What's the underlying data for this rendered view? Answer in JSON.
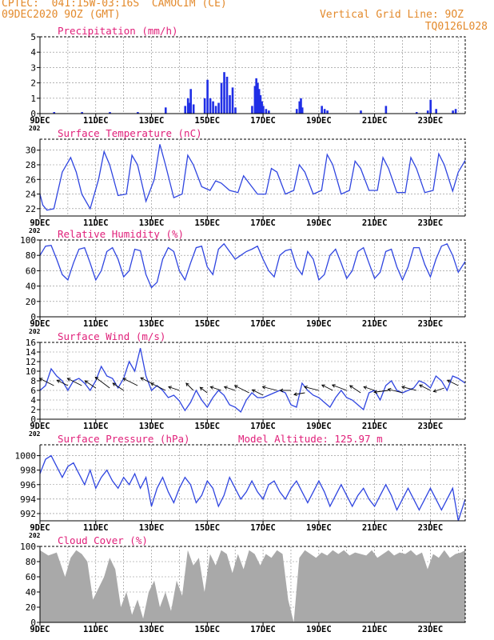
{
  "header": {
    "line1": "CPTEC:  041:15W-03:16S  CAMOCIM (CE)",
    "line2": "09DEC2020 9OZ (GMT)",
    "grid_note": "Vertical Grid Line: 9OZ",
    "code": "TQ0126L028",
    "model_altitude": "Model Altitude: 125.97 m"
  },
  "colors": {
    "header": "#e38a2c",
    "title": "#e0207a",
    "series": "#2f45e0",
    "bars": "#1f2ee6",
    "cloud": "#a9a9a9",
    "frame": "#000000",
    "grid": "#888888"
  },
  "x_axis": {
    "labels": [
      "9DEC",
      "11DEC",
      "13DEC",
      "15DEC",
      "17DEC",
      "19DEC",
      "21DEC",
      "23DEC"
    ],
    "label_days": [
      9,
      11,
      13,
      15,
      17,
      19,
      21,
      23
    ],
    "start_day": 9,
    "end_day": 24.25,
    "year_fragment": "202"
  },
  "chart_data": [
    {
      "id": "precip",
      "type": "bar",
      "title": "Precipitation  (mm/h)",
      "ylim": [
        0,
        5
      ],
      "yticks": [
        0,
        1,
        2,
        3,
        4,
        5
      ],
      "x": [
        9.5,
        10.5,
        11.5,
        12.5,
        13.5,
        14.2,
        14.3,
        14.35,
        14.4,
        14.5,
        14.9,
        15.0,
        15.1,
        15.2,
        15.3,
        15.4,
        15.5,
        15.6,
        15.7,
        15.8,
        15.9,
        16.0,
        16.6,
        16.7,
        16.75,
        16.8,
        16.85,
        16.9,
        16.95,
        17.0,
        17.1,
        17.2,
        18.2,
        18.3,
        18.35,
        18.4,
        19.1,
        19.2,
        19.3,
        20.5,
        21.4,
        22.5,
        22.9,
        23.0,
        23.2,
        23.8,
        23.9
      ],
      "y": [
        0.1,
        0.1,
        0.1,
        0.1,
        0.4,
        0.5,
        1.0,
        0.7,
        1.6,
        0.6,
        1.0,
        2.2,
        1.0,
        0.8,
        0.5,
        0.7,
        2.0,
        2.7,
        2.4,
        1.2,
        1.7,
        0.4,
        0.5,
        1.8,
        2.3,
        2.0,
        1.6,
        1.2,
        0.8,
        0.5,
        0.3,
        0.2,
        0.3,
        0.8,
        1.0,
        0.4,
        0.5,
        0.3,
        0.2,
        0.2,
        0.5,
        0.1,
        0.2,
        0.9,
        0.3,
        0.2,
        0.3
      ]
    },
    {
      "id": "temp",
      "type": "line",
      "title": "Surface Temperature  (nC)",
      "ylim": [
        21,
        31.5
      ],
      "yticks": [
        22,
        24,
        26,
        28,
        30
      ],
      "x": [
        9.0,
        9.1,
        9.25,
        9.5,
        9.8,
        10.1,
        10.3,
        10.5,
        10.8,
        11.1,
        11.3,
        11.5,
        11.8,
        12.1,
        12.3,
        12.5,
        12.8,
        13.1,
        13.3,
        13.5,
        13.8,
        14.1,
        14.3,
        14.5,
        14.8,
        15.1,
        15.3,
        15.5,
        15.8,
        16.1,
        16.3,
        16.5,
        16.8,
        17.1,
        17.3,
        17.5,
        17.8,
        18.1,
        18.3,
        18.5,
        18.8,
        19.1,
        19.3,
        19.5,
        19.8,
        20.1,
        20.3,
        20.5,
        20.8,
        21.1,
        21.3,
        21.5,
        21.8,
        22.1,
        22.3,
        22.5,
        22.8,
        23.1,
        23.3,
        23.5,
        23.8,
        24.0,
        24.25
      ],
      "y": [
        24,
        22.5,
        21.8,
        22,
        27,
        29,
        27,
        24,
        22,
        26,
        29.8,
        28,
        23.8,
        24,
        29.3,
        28,
        23,
        26,
        30.8,
        28,
        23.5,
        24,
        29.3,
        28,
        25,
        24.5,
        25.8,
        25.5,
        24.5,
        24.2,
        26.5,
        25.5,
        24,
        24,
        27.5,
        27,
        24,
        24.5,
        28,
        27,
        24,
        24.5,
        29.4,
        28,
        24,
        24.5,
        28.5,
        27.5,
        24.5,
        24.5,
        29,
        27.5,
        24.2,
        24.2,
        29,
        27.5,
        24.2,
        24.5,
        29.5,
        28,
        24.4,
        27,
        28.6
      ]
    },
    {
      "id": "rh",
      "type": "line",
      "title": "Relative Humidity  (%)",
      "ylim": [
        0,
        100
      ],
      "yticks": [
        0,
        20,
        40,
        60,
        80,
        100
      ],
      "x": [
        9.0,
        9.2,
        9.4,
        9.6,
        9.8,
        10.0,
        10.2,
        10.4,
        10.6,
        10.8,
        11.0,
        11.2,
        11.4,
        11.6,
        11.8,
        12.0,
        12.2,
        12.4,
        12.6,
        12.8,
        13.0,
        13.2,
        13.4,
        13.6,
        13.8,
        14.0,
        14.2,
        14.4,
        14.6,
        14.8,
        15.0,
        15.2,
        15.4,
        15.6,
        15.8,
        16.0,
        16.2,
        16.4,
        16.6,
        16.8,
        17.0,
        17.2,
        17.4,
        17.6,
        17.8,
        18.0,
        18.2,
        18.4,
        18.6,
        18.8,
        19.0,
        19.2,
        19.4,
        19.6,
        19.8,
        20.0,
        20.2,
        20.4,
        20.6,
        20.8,
        21.0,
        21.2,
        21.4,
        21.6,
        21.8,
        22.0,
        22.2,
        22.4,
        22.6,
        22.8,
        23.0,
        23.2,
        23.4,
        23.6,
        23.8,
        24.0,
        24.25
      ],
      "y": [
        80,
        92,
        93,
        75,
        55,
        48,
        70,
        88,
        90,
        70,
        48,
        60,
        85,
        90,
        75,
        52,
        60,
        88,
        86,
        55,
        38,
        45,
        75,
        90,
        85,
        60,
        48,
        70,
        90,
        92,
        65,
        55,
        88,
        95,
        85,
        75,
        80,
        85,
        88,
        92,
        75,
        60,
        52,
        80,
        86,
        88,
        65,
        55,
        85,
        75,
        48,
        55,
        80,
        88,
        70,
        50,
        60,
        85,
        90,
        70,
        50,
        58,
        85,
        88,
        65,
        48,
        65,
        90,
        90,
        68,
        52,
        75,
        92,
        95,
        80,
        58,
        72
      ]
    },
    {
      "id": "wind",
      "type": "line",
      "title": "Surface Wind  (m/s)",
      "ylim": [
        0,
        16
      ],
      "yticks": [
        0,
        2,
        4,
        6,
        8,
        10,
        12,
        14,
        16
      ],
      "x": [
        9.0,
        9.2,
        9.4,
        9.6,
        9.8,
        10.0,
        10.2,
        10.4,
        10.6,
        10.8,
        11.0,
        11.2,
        11.4,
        11.6,
        11.8,
        12.0,
        12.2,
        12.4,
        12.6,
        12.8,
        13.0,
        13.2,
        13.4,
        13.6,
        13.8,
        14.0,
        14.2,
        14.4,
        14.6,
        14.8,
        15.0,
        15.2,
        15.4,
        15.6,
        15.8,
        16.0,
        16.2,
        16.4,
        16.6,
        16.8,
        17.0,
        17.2,
        17.4,
        17.6,
        17.8,
        18.0,
        18.2,
        18.4,
        18.6,
        18.8,
        19.0,
        19.2,
        19.4,
        19.6,
        19.8,
        20.0,
        20.2,
        20.4,
        20.6,
        20.8,
        21.0,
        21.2,
        21.4,
        21.6,
        21.8,
        22.0,
        22.2,
        22.4,
        22.6,
        22.8,
        23.0,
        23.2,
        23.4,
        23.6,
        23.8,
        24.0,
        24.25
      ],
      "y": [
        6,
        7,
        10.5,
        9,
        8,
        6,
        8,
        8.5,
        7.5,
        6,
        8,
        11,
        9,
        8.5,
        6.5,
        8.5,
        12,
        10,
        14.8,
        9,
        6,
        7,
        6,
        4.5,
        5,
        3.8,
        1.8,
        3.5,
        6,
        4,
        2.5,
        4.5,
        6,
        5,
        3,
        2.5,
        1.5,
        4,
        5.5,
        4.5,
        4.5,
        5,
        5.5,
        6,
        5.5,
        3,
        2.5,
        7.5,
        6,
        5,
        4.5,
        3.5,
        2.5,
        4.5,
        6,
        4.5,
        4,
        3,
        2,
        5.5,
        6,
        4,
        7,
        8,
        6,
        5.5,
        6,
        6.5,
        8,
        7.5,
        6.5,
        9,
        8,
        6,
        9,
        8.5,
        7.5
      ],
      "arrows": {
        "x": [
          9.5,
          10.0,
          10.5,
          11.0,
          11.5,
          12.0,
          12.5,
          13.0,
          13.5,
          14.0,
          14.5,
          15.0,
          15.5,
          16.0,
          16.5,
          17.0,
          17.5,
          18.0,
          18.5,
          19.0,
          19.5,
          20.0,
          20.5,
          21.0,
          21.5,
          22.0,
          22.5,
          23.0,
          23.5,
          24.0
        ],
        "y": [
          7,
          7,
          7,
          6.5,
          6.5,
          6,
          7,
          7.5,
          6,
          6,
          6,
          5.5,
          6,
          6,
          5.5,
          5,
          6,
          6,
          5.5,
          6,
          6,
          6,
          5.5,
          6,
          6,
          5.5,
          6,
          6,
          6.5,
          7
        ],
        "u": [
          -4,
          -3,
          -4,
          -3,
          -4,
          -3,
          -4,
          -3,
          -4,
          -3,
          -2,
          -2,
          -3,
          -3,
          -4,
          -3,
          -4,
          -3,
          -3,
          -4,
          -3,
          -4,
          -3,
          -3,
          -4,
          -4,
          -4,
          -3,
          -3,
          -3
        ],
        "v": [
          2,
          1.5,
          2,
          2,
          3,
          2,
          2,
          1.5,
          2,
          1,
          2,
          1.5,
          1,
          1,
          2,
          1.5,
          1,
          0,
          -0.5,
          1,
          1.5,
          1.5,
          2,
          1,
          -0.5,
          1,
          1,
          1.5,
          -1,
          1.5
        ]
      }
    },
    {
      "id": "pres",
      "type": "line",
      "title": "Surface Pressure  (hPa)",
      "ylim": [
        991,
        1001.5
      ],
      "yticks": [
        992,
        994,
        996,
        998,
        1000
      ],
      "x": [
        9.0,
        9.2,
        9.4,
        9.6,
        9.8,
        10.0,
        10.2,
        10.4,
        10.6,
        10.8,
        11.0,
        11.2,
        11.4,
        11.6,
        11.8,
        12.0,
        12.2,
        12.4,
        12.6,
        12.8,
        13.0,
        13.2,
        13.4,
        13.6,
        13.8,
        14.0,
        14.2,
        14.4,
        14.6,
        14.8,
        15.0,
        15.2,
        15.4,
        15.6,
        15.8,
        16.0,
        16.2,
        16.4,
        16.6,
        16.8,
        17.0,
        17.2,
        17.4,
        17.6,
        17.8,
        18.0,
        18.2,
        18.4,
        18.6,
        18.8,
        19.0,
        19.2,
        19.4,
        19.6,
        19.8,
        20.0,
        20.2,
        20.4,
        20.6,
        20.8,
        21.0,
        21.2,
        21.4,
        21.6,
        21.8,
        22.0,
        22.2,
        22.4,
        22.6,
        22.8,
        23.0,
        23.2,
        23.4,
        23.6,
        23.8,
        24.0,
        24.25
      ],
      "y": [
        997.5,
        999.5,
        1000,
        998.5,
        997,
        998.5,
        999,
        997.5,
        996,
        998,
        995.5,
        997,
        998,
        996.5,
        995.5,
        997,
        996,
        997.5,
        995.5,
        997,
        993,
        995.5,
        997,
        995,
        993.5,
        995.5,
        997,
        996,
        993.5,
        994.5,
        996.5,
        995.5,
        993,
        994.5,
        997,
        995.5,
        994,
        995,
        996.5,
        995,
        994,
        996,
        996.5,
        995,
        994,
        995.5,
        996.5,
        995,
        993.5,
        995,
        996.5,
        995,
        993,
        994.5,
        996,
        994.5,
        993,
        994.5,
        995.5,
        994,
        993,
        994.5,
        996,
        994.5,
        992.5,
        994,
        995.5,
        994,
        992.5,
        994,
        995.5,
        994,
        992.5,
        994,
        995.5,
        991,
        994
      ]
    },
    {
      "id": "cloud",
      "type": "area",
      "title": "Cloud Cover  (%)",
      "ylim": [
        0,
        100
      ],
      "yticks": [
        0,
        20,
        40,
        60,
        80,
        100
      ],
      "x": [
        9.0,
        9.3,
        9.6,
        9.9,
        10.1,
        10.3,
        10.5,
        10.7,
        10.9,
        11.1,
        11.3,
        11.5,
        11.7,
        11.9,
        12.1,
        12.3,
        12.5,
        12.7,
        12.9,
        13.1,
        13.3,
        13.5,
        13.7,
        13.9,
        14.1,
        14.3,
        14.5,
        14.7,
        14.9,
        15.1,
        15.3,
        15.5,
        15.7,
        15.9,
        16.1,
        16.3,
        16.5,
        16.7,
        16.9,
        17.1,
        17.3,
        17.5,
        17.7,
        17.9,
        18.1,
        18.3,
        18.5,
        18.7,
        18.9,
        19.1,
        19.3,
        19.5,
        19.7,
        19.9,
        20.1,
        20.3,
        20.5,
        20.7,
        20.9,
        21.1,
        21.3,
        21.5,
        21.7,
        21.9,
        22.1,
        22.3,
        22.5,
        22.7,
        22.9,
        23.1,
        23.3,
        23.5,
        23.7,
        23.9,
        24.1,
        24.25
      ],
      "y": [
        95,
        88,
        92,
        60,
        85,
        95,
        90,
        80,
        30,
        45,
        60,
        85,
        70,
        20,
        40,
        10,
        30,
        5,
        40,
        55,
        20,
        40,
        15,
        55,
        35,
        95,
        75,
        85,
        40,
        90,
        75,
        95,
        90,
        65,
        90,
        70,
        95,
        90,
        75,
        90,
        85,
        95,
        90,
        30,
        0,
        85,
        95,
        90,
        85,
        92,
        88,
        95,
        90,
        95,
        88,
        92,
        90,
        88,
        95,
        85,
        90,
        95,
        88,
        92,
        90,
        95,
        88,
        92,
        70,
        90,
        85,
        95,
        85,
        90,
        92,
        95
      ]
    }
  ]
}
